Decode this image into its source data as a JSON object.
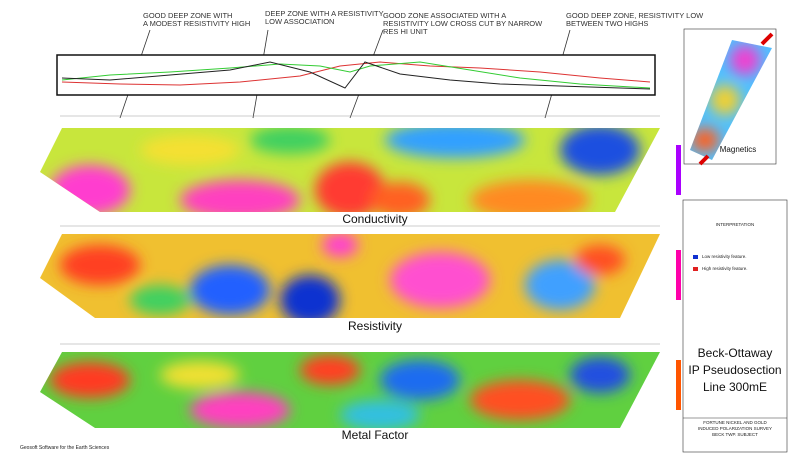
{
  "annotations": [
    {
      "lines": [
        "GOOD DEEP ZONE WITH",
        "A MODEST RESISTIVITY HIGH"
      ]
    },
    {
      "lines": [
        "DEEP ZONE WITH A RESISTIVITY",
        "LOW ASSOCIATION"
      ]
    },
    {
      "lines": [
        "GOOD ZONE ASSOCIATED WITH  A",
        "RESISTIVITY LOW CROSS CUT BY NARROW",
        "RES HI UNIT"
      ]
    },
    {
      "lines": [
        "GOOD DEEP ZONE, RESISTIVITY LOW",
        "BETWEEN TWO HIGHS"
      ]
    }
  ],
  "panels": [
    {
      "label": "Conductivity"
    },
    {
      "label": "Resistivity"
    },
    {
      "label": "Metal Factor"
    }
  ],
  "inset": {
    "label": "Magnetics"
  },
  "legend": {
    "title": "INTERPRETATION",
    "items": [
      "Low resistivity feature.",
      "High resistivity feature."
    ]
  },
  "title_block": {
    "lines": [
      "Beck-Ottaway",
      "IP Pseudosection",
      "Line 300mE"
    ],
    "company": [
      "FORTUNE NICKEL AND GOLD",
      "INDUCED POLARIZATION SURVEY",
      "BECK TWP. SUBJECT"
    ]
  },
  "footer": "Geosoft Software for the Earth Sciences"
}
